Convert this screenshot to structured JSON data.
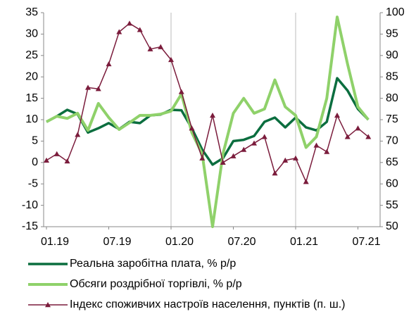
{
  "chart_data": {
    "type": "line",
    "categories": [
      "01.19",
      null,
      null,
      null,
      null,
      null,
      "07.19",
      null,
      null,
      null,
      null,
      null,
      "01.20",
      null,
      null,
      null,
      null,
      null,
      "07.20",
      null,
      null,
      null,
      null,
      null,
      "01.21",
      null,
      null,
      null,
      null,
      null,
      "07.21",
      null
    ],
    "series": [
      {
        "name": "Реальна заробітна плата, % р/р",
        "color": "#0b6e3f",
        "values": [
          9.5,
          10.8,
          12.3,
          11.3,
          7,
          8,
          9.2,
          7.8,
          9.5,
          9.2,
          11,
          11.2,
          12.3,
          12.2,
          8,
          3,
          -0.5,
          1,
          5,
          5.3,
          6.2,
          9.5,
          10.5,
          8.2,
          10.5,
          8.2,
          7.5,
          9.5,
          19.7,
          16.8,
          12.5,
          10
        ]
      },
      {
        "name": "Обсяги роздрібної торгівлі, % р/р",
        "color": "#8fd16a",
        "values": [
          9.5,
          10.8,
          10.3,
          11.5,
          7.5,
          13.8,
          10.5,
          7.7,
          9.3,
          11,
          11,
          11.3,
          12,
          16,
          7,
          2,
          -15,
          2,
          11.5,
          15,
          11.5,
          12.5,
          19.3,
          13,
          11,
          3.5,
          6,
          15,
          34,
          23,
          13,
          10
        ]
      },
      {
        "name": "Індекс споживчих настроїв населення, пунктів (п. ш.)",
        "color": "#7b1c3c",
        "axis": "y2",
        "marker": "triangle",
        "values": [
          65.5,
          67,
          65.3,
          71.5,
          82.5,
          82.2,
          88,
          95.5,
          97.5,
          96,
          91.5,
          92,
          89,
          81.5,
          73,
          66,
          76,
          65,
          66.5,
          68,
          69.5,
          71,
          62.5,
          65.5,
          66,
          60.5,
          69,
          67.5,
          76,
          71,
          73,
          71
        ]
      }
    ],
    "ylim": [
      -15,
      35
    ],
    "yticks": [
      -15,
      -10,
      -5,
      0,
      5,
      10,
      15,
      20,
      25,
      30,
      35
    ],
    "y2lim": [
      50,
      100
    ],
    "y2ticks": [
      50,
      55,
      60,
      65,
      70,
      75,
      80,
      85,
      90,
      95,
      100
    ]
  }
}
